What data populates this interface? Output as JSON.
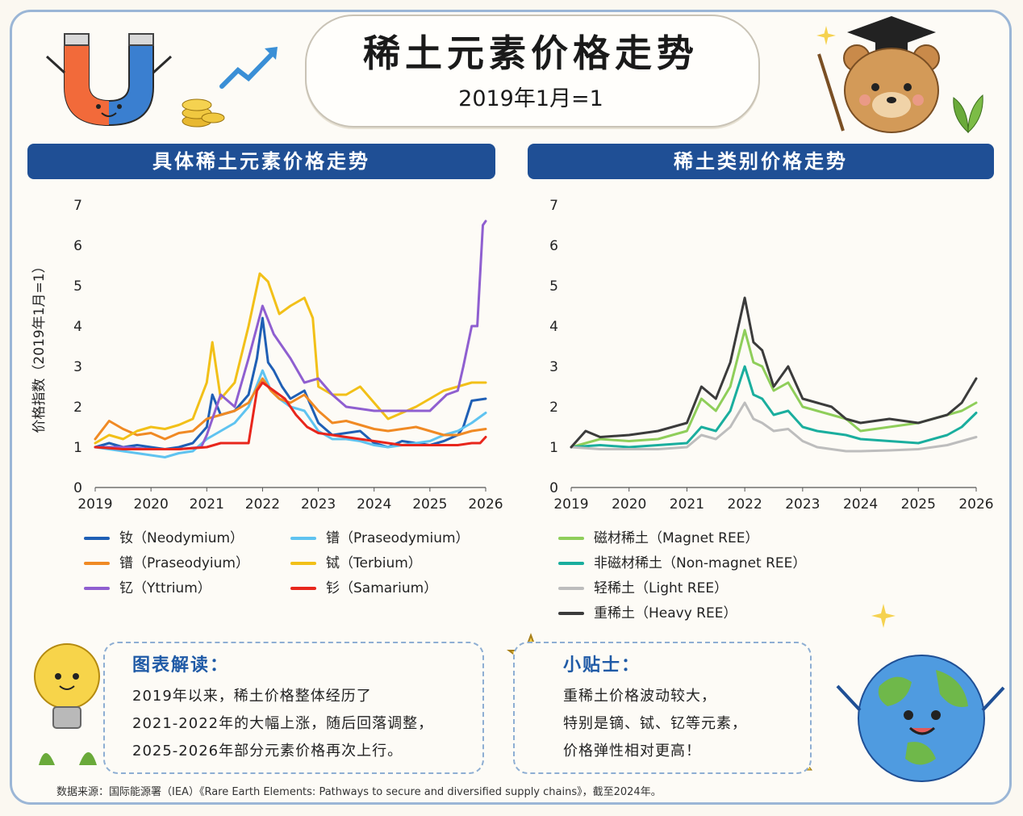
{
  "header": {
    "title": "稀土元素价格走势",
    "subtitle": "2019年1月=1"
  },
  "left_panel": {
    "title": "具体稀土元素价格走势"
  },
  "right_panel": {
    "title": "稀土类别价格走势"
  },
  "colors": {
    "header_bg": "#1f4f95",
    "neodymium": "#1f5fb5",
    "praseodymium_light": "#5fc3f0",
    "praseodyium": "#f08a24",
    "terbium": "#f2c018",
    "yttrium": "#8f5fd0",
    "samarium": "#e8261c",
    "magnet": "#8fce5a",
    "nonmagnet": "#1aae9e",
    "light": "#bdbdbd",
    "heavy": "#3b3b3b"
  },
  "chart_data": [
    {
      "type": "line",
      "ylabel": "价格指数（2019年1月=1）",
      "xlabel": "",
      "ylim": [
        0,
        7
      ],
      "yticks": [
        "0",
        "1",
        "2",
        "3",
        "4",
        "5",
        "6",
        "7"
      ],
      "xlim": [
        2019,
        2026
      ],
      "xticks": [
        "2019",
        "2020",
        "2021",
        "2022",
        "2023",
        "2024",
        "2025",
        "2026"
      ],
      "grid": false,
      "legend_position": "bottom",
      "series": [
        {
          "name": "钕（Neodymium）",
          "color": "#1f5fb5",
          "x": [
            2019,
            2019.25,
            2019.5,
            2019.75,
            2020,
            2020.25,
            2020.5,
            2020.75,
            2021,
            2021.1,
            2021.25,
            2021.5,
            2021.75,
            2021.9,
            2022,
            2022.1,
            2022.2,
            2022.35,
            2022.5,
            2022.75,
            2023,
            2023.25,
            2023.5,
            2023.75,
            2024,
            2024.25,
            2024.5,
            2024.75,
            2025,
            2025.25,
            2025.5,
            2025.6,
            2025.75,
            2026
          ],
          "y": [
            1.0,
            1.1,
            1.0,
            1.05,
            1.0,
            0.95,
            1.0,
            1.1,
            1.5,
            2.3,
            1.8,
            1.9,
            2.3,
            3.2,
            4.2,
            3.1,
            2.9,
            2.5,
            2.2,
            2.4,
            1.6,
            1.3,
            1.35,
            1.4,
            1.1,
            1.0,
            1.15,
            1.1,
            1.05,
            1.15,
            1.3,
            1.5,
            2.15,
            2.2
          ]
        },
        {
          "name": "镨（Praseodymium）",
          "color": "#5fc3f0",
          "x": [
            2019,
            2019.25,
            2019.5,
            2019.75,
            2020,
            2020.25,
            2020.5,
            2020.75,
            2021,
            2021.25,
            2021.5,
            2021.75,
            2022,
            2022.15,
            2022.3,
            2022.5,
            2022.75,
            2023,
            2023.25,
            2023.5,
            2023.75,
            2024,
            2024.25,
            2024.5,
            2024.75,
            2025,
            2025.25,
            2025.5,
            2025.75,
            2026
          ],
          "y": [
            1.0,
            0.95,
            0.9,
            0.85,
            0.8,
            0.75,
            0.85,
            0.9,
            1.2,
            1.4,
            1.6,
            2.0,
            2.9,
            2.4,
            2.2,
            2.0,
            1.9,
            1.4,
            1.2,
            1.2,
            1.15,
            1.05,
            1.0,
            1.05,
            1.1,
            1.15,
            1.3,
            1.4,
            1.6,
            1.85
          ]
        },
        {
          "name": "镨（Praseodyium）",
          "color": "#f08a24",
          "x": [
            2019,
            2019.25,
            2019.5,
            2019.75,
            2020,
            2020.25,
            2020.5,
            2020.75,
            2021,
            2021.25,
            2021.5,
            2021.75,
            2022,
            2022.15,
            2022.3,
            2022.5,
            2022.75,
            2023,
            2023.25,
            2023.5,
            2023.75,
            2024,
            2024.25,
            2024.5,
            2024.75,
            2025,
            2025.25,
            2025.5,
            2025.75,
            2026
          ],
          "y": [
            1.2,
            1.65,
            1.45,
            1.3,
            1.35,
            1.2,
            1.35,
            1.4,
            1.7,
            1.8,
            1.9,
            2.1,
            2.7,
            2.4,
            2.2,
            2.1,
            2.3,
            1.9,
            1.6,
            1.65,
            1.55,
            1.45,
            1.4,
            1.45,
            1.5,
            1.4,
            1.3,
            1.3,
            1.4,
            1.45
          ]
        },
        {
          "name": "铽（Terbium）",
          "color": "#f2c018",
          "x": [
            2019,
            2019.25,
            2019.5,
            2019.75,
            2020,
            2020.25,
            2020.5,
            2020.75,
            2021,
            2021.1,
            2021.25,
            2021.5,
            2021.75,
            2021.95,
            2022.1,
            2022.3,
            2022.5,
            2022.75,
            2022.9,
            2023,
            2023.25,
            2023.5,
            2023.75,
            2024,
            2024.25,
            2024.5,
            2024.75,
            2025,
            2025.25,
            2025.5,
            2025.75,
            2026
          ],
          "y": [
            1.1,
            1.3,
            1.2,
            1.4,
            1.5,
            1.45,
            1.55,
            1.7,
            2.6,
            3.6,
            2.2,
            2.6,
            4.0,
            5.3,
            5.1,
            4.3,
            4.5,
            4.7,
            4.2,
            2.5,
            2.3,
            2.3,
            2.5,
            2.1,
            1.7,
            1.85,
            2.0,
            2.2,
            2.4,
            2.5,
            2.6,
            2.6
          ]
        },
        {
          "name": "钇（Yttrium）",
          "color": "#8f5fd0",
          "x": [
            2019,
            2019.5,
            2020,
            2020.5,
            2020.9,
            2021,
            2021.25,
            2021.5,
            2021.75,
            2022,
            2022.2,
            2022.5,
            2022.75,
            2023,
            2023.25,
            2023.5,
            2023.75,
            2024,
            2024.5,
            2025,
            2025.3,
            2025.5,
            2025.6,
            2025.75,
            2025.85,
            2025.95,
            2026
          ],
          "y": [
            1.0,
            1.0,
            0.95,
            0.95,
            1.0,
            1.3,
            2.3,
            2.0,
            3.2,
            4.5,
            3.8,
            3.2,
            2.6,
            2.7,
            2.3,
            2.0,
            1.95,
            1.9,
            1.9,
            1.9,
            2.3,
            2.4,
            3.0,
            4.0,
            4.0,
            6.5,
            6.6
          ]
        },
        {
          "name": "钐（Samarium）",
          "color": "#e8261c",
          "x": [
            2019,
            2019.5,
            2020,
            2020.5,
            2021,
            2021.25,
            2021.5,
            2021.75,
            2021.9,
            2022,
            2022.2,
            2022.4,
            2022.6,
            2022.8,
            2023,
            2023.5,
            2024,
            2024.5,
            2025,
            2025.5,
            2025.75,
            2025.9,
            2026
          ],
          "y": [
            1.0,
            0.95,
            0.95,
            0.95,
            1.0,
            1.1,
            1.1,
            1.1,
            2.4,
            2.6,
            2.4,
            2.2,
            1.8,
            1.5,
            1.35,
            1.25,
            1.15,
            1.05,
            1.05,
            1.05,
            1.1,
            1.1,
            1.25
          ]
        }
      ]
    },
    {
      "type": "line",
      "ylabel": "",
      "xlabel": "",
      "ylim": [
        0,
        7
      ],
      "yticks": [
        "0",
        "1",
        "2",
        "3",
        "4",
        "5",
        "6",
        "7"
      ],
      "xlim": [
        2019,
        2026
      ],
      "xticks": [
        "2019",
        "2020",
        "2021",
        "2022",
        "2023",
        "2024",
        "2025",
        "2026"
      ],
      "grid": false,
      "legend_position": "bottom",
      "series": [
        {
          "name": "磁材稀土（Magnet REE）",
          "color": "#8fce5a",
          "x": [
            2019,
            2019.5,
            2020,
            2020.5,
            2021,
            2021.25,
            2021.5,
            2021.75,
            2022,
            2022.15,
            2022.3,
            2022.5,
            2022.75,
            2023,
            2023.25,
            2023.5,
            2023.75,
            2024,
            2024.5,
            2025,
            2025.5,
            2025.75,
            2026
          ],
          "y": [
            1.0,
            1.2,
            1.15,
            1.2,
            1.4,
            2.2,
            1.9,
            2.5,
            3.9,
            3.1,
            3.0,
            2.4,
            2.6,
            2.0,
            1.9,
            1.8,
            1.7,
            1.4,
            1.5,
            1.6,
            1.8,
            1.9,
            2.1
          ]
        },
        {
          "name": "非磁材稀土（Non-magnet REE）",
          "color": "#1aae9e",
          "x": [
            2019,
            2019.5,
            2020,
            2020.5,
            2021,
            2021.25,
            2021.5,
            2021.75,
            2022,
            2022.15,
            2022.3,
            2022.5,
            2022.75,
            2023,
            2023.25,
            2023.5,
            2023.75,
            2024,
            2024.5,
            2025,
            2025.5,
            2025.75,
            2026
          ],
          "y": [
            1.0,
            1.05,
            1.0,
            1.05,
            1.1,
            1.5,
            1.4,
            1.9,
            3.0,
            2.3,
            2.2,
            1.8,
            1.9,
            1.5,
            1.4,
            1.35,
            1.3,
            1.2,
            1.15,
            1.1,
            1.3,
            1.5,
            1.85
          ]
        },
        {
          "name": "轻稀土（Light REE）",
          "color": "#bdbdbd",
          "x": [
            2019,
            2019.5,
            2020,
            2020.5,
            2021,
            2021.25,
            2021.5,
            2021.75,
            2022,
            2022.15,
            2022.3,
            2022.5,
            2022.75,
            2023,
            2023.25,
            2023.5,
            2023.75,
            2024,
            2024.5,
            2025,
            2025.5,
            2025.75,
            2026
          ],
          "y": [
            1.0,
            0.95,
            0.95,
            0.95,
            1.0,
            1.3,
            1.2,
            1.5,
            2.1,
            1.7,
            1.6,
            1.4,
            1.45,
            1.15,
            1.0,
            0.95,
            0.9,
            0.9,
            0.92,
            0.95,
            1.05,
            1.15,
            1.25
          ]
        },
        {
          "name": "重稀土（Heavy REE）",
          "color": "#3b3b3b",
          "x": [
            2019,
            2019.25,
            2019.5,
            2020,
            2020.5,
            2021,
            2021.25,
            2021.5,
            2021.75,
            2022,
            2022.15,
            2022.3,
            2022.5,
            2022.75,
            2023,
            2023.25,
            2023.5,
            2023.75,
            2024,
            2024.5,
            2025,
            2025.5,
            2025.75,
            2026
          ],
          "y": [
            1.0,
            1.4,
            1.25,
            1.3,
            1.4,
            1.6,
            2.5,
            2.2,
            3.1,
            4.7,
            3.6,
            3.4,
            2.5,
            3.0,
            2.2,
            2.1,
            2.0,
            1.7,
            1.6,
            1.7,
            1.6,
            1.8,
            2.1,
            2.7
          ]
        }
      ]
    }
  ],
  "insight": {
    "title": "图表解读：",
    "lines": [
      "2019年以来，稀土价格整体经历了",
      "2021-2022年的大幅上涨，随后回落调整，",
      "2025-2026年部分元素价格再次上行。"
    ]
  },
  "tips": {
    "title": "小贴士：",
    "lines": [
      "重稀土价格波动较大，",
      "特别是镝、铽、钇等元素，",
      "价格弹性相对更高！"
    ]
  },
  "source": "数据来源：国际能源署（IEA）《Rare Earth Elements: Pathways to secure and diversified supply chains》，截至2024年。",
  "decorations": [
    "magnet-mascot",
    "rising-arrow-icon",
    "coin-stack-icon",
    "bear-teacher-mascot",
    "plant-icon",
    "lightbulb-mascot",
    "star-mascot",
    "gold-bars-icon",
    "earth-mascot",
    "sparkle-icon"
  ]
}
